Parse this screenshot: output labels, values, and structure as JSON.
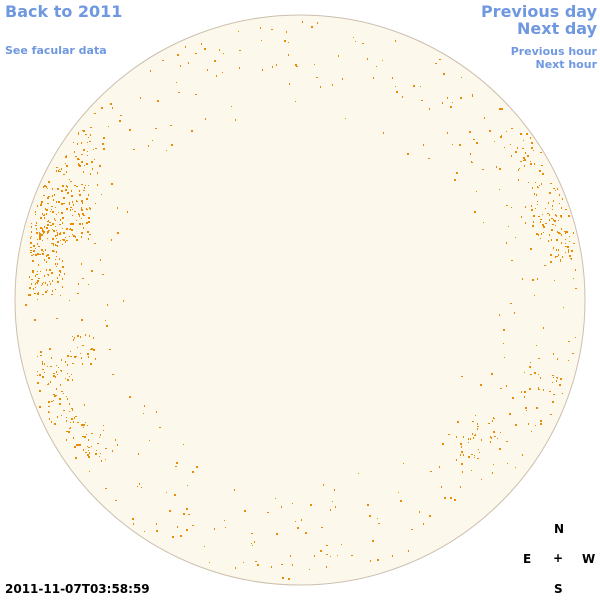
{
  "nav": {
    "back": "Back to 2011",
    "facular": "See facular data",
    "previous_day": "Previous day",
    "next_day": "Next day",
    "previous_hour": "Previous hour",
    "next_hour": "Next hour"
  },
  "compass": {
    "north": "N",
    "east": "E",
    "center": "+",
    "west": "W",
    "south": "S"
  },
  "timestamp": "2011-11-07T03:58:59"
}
